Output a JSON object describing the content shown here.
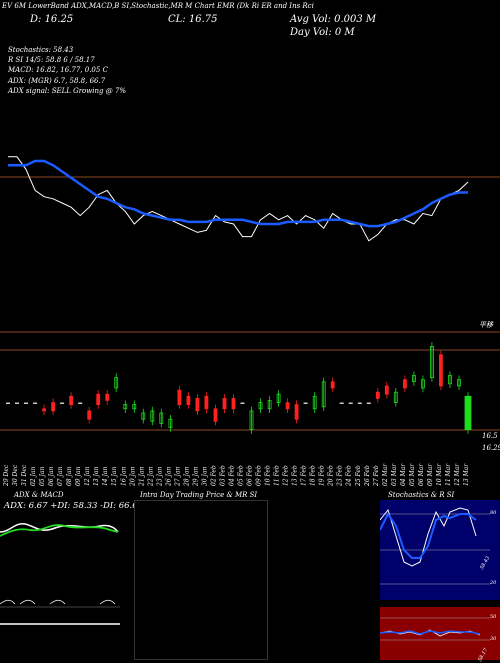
{
  "header": {
    "top_line": "EV 6M LowerBand ADX,MACD,B SI,Stochastic,MR M Chart EMR (Dk Ri ER and Ins Rci",
    "close": "CL: 16.75",
    "day": "D: 16.25",
    "avg_vol": "Avg Vol: 0.003 M",
    "day_vol": "Day Vol: 0 M",
    "stochastics": "Stochastics: 58.43",
    "rsi": "R SI 14/5: 58.8 6 / 58.17",
    "macd": "MACD: 16.82, 16.77, 0.05 C",
    "adx": "ADX: (MGR) 6.7, 58.8, 66.7",
    "adx_signal": "ADX signal: SELL Growing @ 7%"
  },
  "price_scale": {
    "label": "平移"
  },
  "volume_labels": {
    "high": "16.5",
    "low": "16.29"
  },
  "dates": [
    "29 Dec",
    "30 Dec",
    "31 Dec",
    "02 Jan",
    "05 Jan",
    "06 Jan",
    "07 Jan",
    "08 Jan",
    "09 Jan",
    "12 Jan",
    "13 Jan",
    "14 Jan",
    "15 Jan",
    "16 Jan",
    "20 Jan",
    "21 Jan",
    "22 Jan",
    "23 Jan",
    "26 Jan",
    "27 Jan",
    "28 Jan",
    "29 Jan",
    "30 Jan",
    "02 Feb",
    "03 Feb",
    "04 Feb",
    "05 Feb",
    "06 Feb",
    "09 Feb",
    "10 Feb",
    "11 Feb",
    "12 Feb",
    "13 Feb",
    "17 Feb",
    "18 Feb",
    "19 Feb",
    "20 Feb",
    "23 Feb",
    "24 Feb",
    "25 Feb",
    "26 Feb",
    "27 Feb",
    "02 Mar",
    "03 Mar",
    "04 Mar",
    "05 Mar",
    "06 Mar",
    "09 Mar",
    "10 Mar",
    "11 Mar",
    "12 Mar",
    "13 Mar"
  ],
  "panels": {
    "adx_title": "ADX & MACD",
    "adx_values": "ADX: 6.67 +DI: 58.33 -DI: 66.67",
    "intraday_title": "Intra Day Trading Price & MR SI",
    "stoch_title": "Stochastics & R SI",
    "stoch_levels": [
      "80",
      "20"
    ],
    "stoch_value": "58.43",
    "rsi_levels": [
      "50",
      "30"
    ],
    "rsi_value": "58.17"
  },
  "chart_data": {
    "type": "line",
    "title": "",
    "series": [
      {
        "name": "Price",
        "color": "#ffffff",
        "values": [
          16.62,
          16.62,
          16.56,
          16.46,
          16.43,
          16.42,
          16.4,
          16.38,
          16.34,
          16.38,
          16.44,
          16.46,
          16.4,
          16.36,
          16.3,
          16.34,
          16.36,
          16.34,
          16.32,
          16.3,
          16.28,
          16.26,
          16.27,
          16.34,
          16.31,
          16.3,
          16.24,
          16.24,
          16.32,
          16.35,
          16.32,
          16.34,
          16.3,
          16.34,
          16.32,
          16.28,
          16.35,
          16.32,
          16.3,
          16.3,
          16.22,
          16.25,
          16.3,
          16.32,
          16.32,
          16.3,
          16.35,
          16.34,
          16.42,
          16.44,
          16.46,
          16.5
        ]
      },
      {
        "name": "EMA",
        "color": "#1a5cff",
        "values": [
          16.58,
          16.58,
          16.58,
          16.6,
          16.6,
          16.58,
          16.55,
          16.52,
          16.49,
          16.46,
          16.43,
          16.42,
          16.4,
          16.38,
          16.37,
          16.35,
          16.34,
          16.33,
          16.32,
          16.32,
          16.31,
          16.31,
          16.31,
          16.32,
          16.32,
          16.32,
          16.32,
          16.31,
          16.3,
          16.3,
          16.3,
          16.31,
          16.31,
          16.31,
          16.31,
          16.32,
          16.32,
          16.32,
          16.31,
          16.3,
          16.29,
          16.29,
          16.3,
          16.31,
          16.33,
          16.35,
          16.37,
          16.4,
          16.42,
          16.44,
          16.45,
          16.45
        ]
      }
    ],
    "candles": [
      {
        "o": 0,
        "c": 0,
        "dir": "flat"
      },
      {
        "o": 0,
        "c": 0,
        "dir": "flat"
      },
      {
        "o": 0,
        "c": 0,
        "dir": "flat"
      },
      {
        "o": 0,
        "c": 0,
        "dir": "flat"
      },
      {
        "o": 0.3,
        "c": 0.28,
        "dir": "down"
      },
      {
        "o": 0.28,
        "c": 0.36,
        "dir": "down"
      },
      {
        "o": 0,
        "c": 0,
        "dir": "flat"
      },
      {
        "o": 0.34,
        "c": 0.42,
        "dir": "down"
      },
      {
        "o": 0,
        "c": 0,
        "dir": "flat"
      },
      {
        "o": 0.2,
        "c": 0.28,
        "dir": "down"
      },
      {
        "o": 0.34,
        "c": 0.44,
        "dir": "down"
      },
      {
        "o": 0.38,
        "c": 0.44,
        "dir": "down"
      },
      {
        "o": 0.5,
        "c": 0.6,
        "dir": "up"
      },
      {
        "o": 0.3,
        "c": 0.34,
        "dir": "up"
      },
      {
        "o": 0.3,
        "c": 0.34,
        "dir": "up"
      },
      {
        "o": 0.2,
        "c": 0.26,
        "dir": "up"
      },
      {
        "o": 0.18,
        "c": 0.28,
        "dir": "up"
      },
      {
        "o": 0.16,
        "c": 0.26,
        "dir": "up"
      },
      {
        "o": 0.12,
        "c": 0.2,
        "dir": "up"
      },
      {
        "o": 0.34,
        "c": 0.48,
        "dir": "down"
      },
      {
        "o": 0.34,
        "c": 0.42,
        "dir": "down"
      },
      {
        "o": 0.28,
        "c": 0.4,
        "dir": "down"
      },
      {
        "o": 0.3,
        "c": 0.42,
        "dir": "down"
      },
      {
        "o": 0.18,
        "c": 0.3,
        "dir": "down"
      },
      {
        "o": 0.3,
        "c": 0.4,
        "dir": "down"
      },
      {
        "o": 0.3,
        "c": 0.4,
        "dir": "down"
      },
      {
        "o": 0,
        "c": 0,
        "dir": "flat"
      },
      {
        "o": 0.1,
        "c": 0.28,
        "dir": "up"
      },
      {
        "o": 0.3,
        "c": 0.36,
        "dir": "up"
      },
      {
        "o": 0.3,
        "c": 0.38,
        "dir": "up"
      },
      {
        "o": 0.36,
        "c": 0.44,
        "dir": "up"
      },
      {
        "o": 0.3,
        "c": 0.36,
        "dir": "down"
      },
      {
        "o": 0.2,
        "c": 0.34,
        "dir": "down"
      },
      {
        "o": 0,
        "c": 0,
        "dir": "flat"
      },
      {
        "o": 0.3,
        "c": 0.42,
        "dir": "up"
      },
      {
        "o": 0.32,
        "c": 0.56,
        "dir": "up"
      },
      {
        "o": 0.5,
        "c": 0.56,
        "dir": "down"
      },
      {
        "o": 0,
        "c": 0,
        "dir": "flat"
      },
      {
        "o": 0,
        "c": 0,
        "dir": "flat"
      },
      {
        "o": 0,
        "c": 0,
        "dir": "flat"
      },
      {
        "o": 0,
        "c": 0,
        "dir": "flat"
      },
      {
        "o": 0.4,
        "c": 0.46,
        "dir": "down"
      },
      {
        "o": 0.44,
        "c": 0.52,
        "dir": "down"
      },
      {
        "o": 0.36,
        "c": 0.46,
        "dir": "up"
      },
      {
        "o": 0.5,
        "c": 0.58,
        "dir": "down"
      },
      {
        "o": 0.56,
        "c": 0.62,
        "dir": "up"
      },
      {
        "o": 0.5,
        "c": 0.58,
        "dir": "up"
      },
      {
        "o": 0.6,
        "c": 0.9,
        "dir": "up"
      },
      {
        "o": 0.52,
        "c": 0.82,
        "dir": "down"
      },
      {
        "o": 0.54,
        "c": 0.62,
        "dir": "up"
      },
      {
        "o": 0.52,
        "c": 0.58,
        "dir": "up"
      },
      {
        "o": 0.1,
        "c": 0.42,
        "dir": "green"
      }
    ]
  }
}
